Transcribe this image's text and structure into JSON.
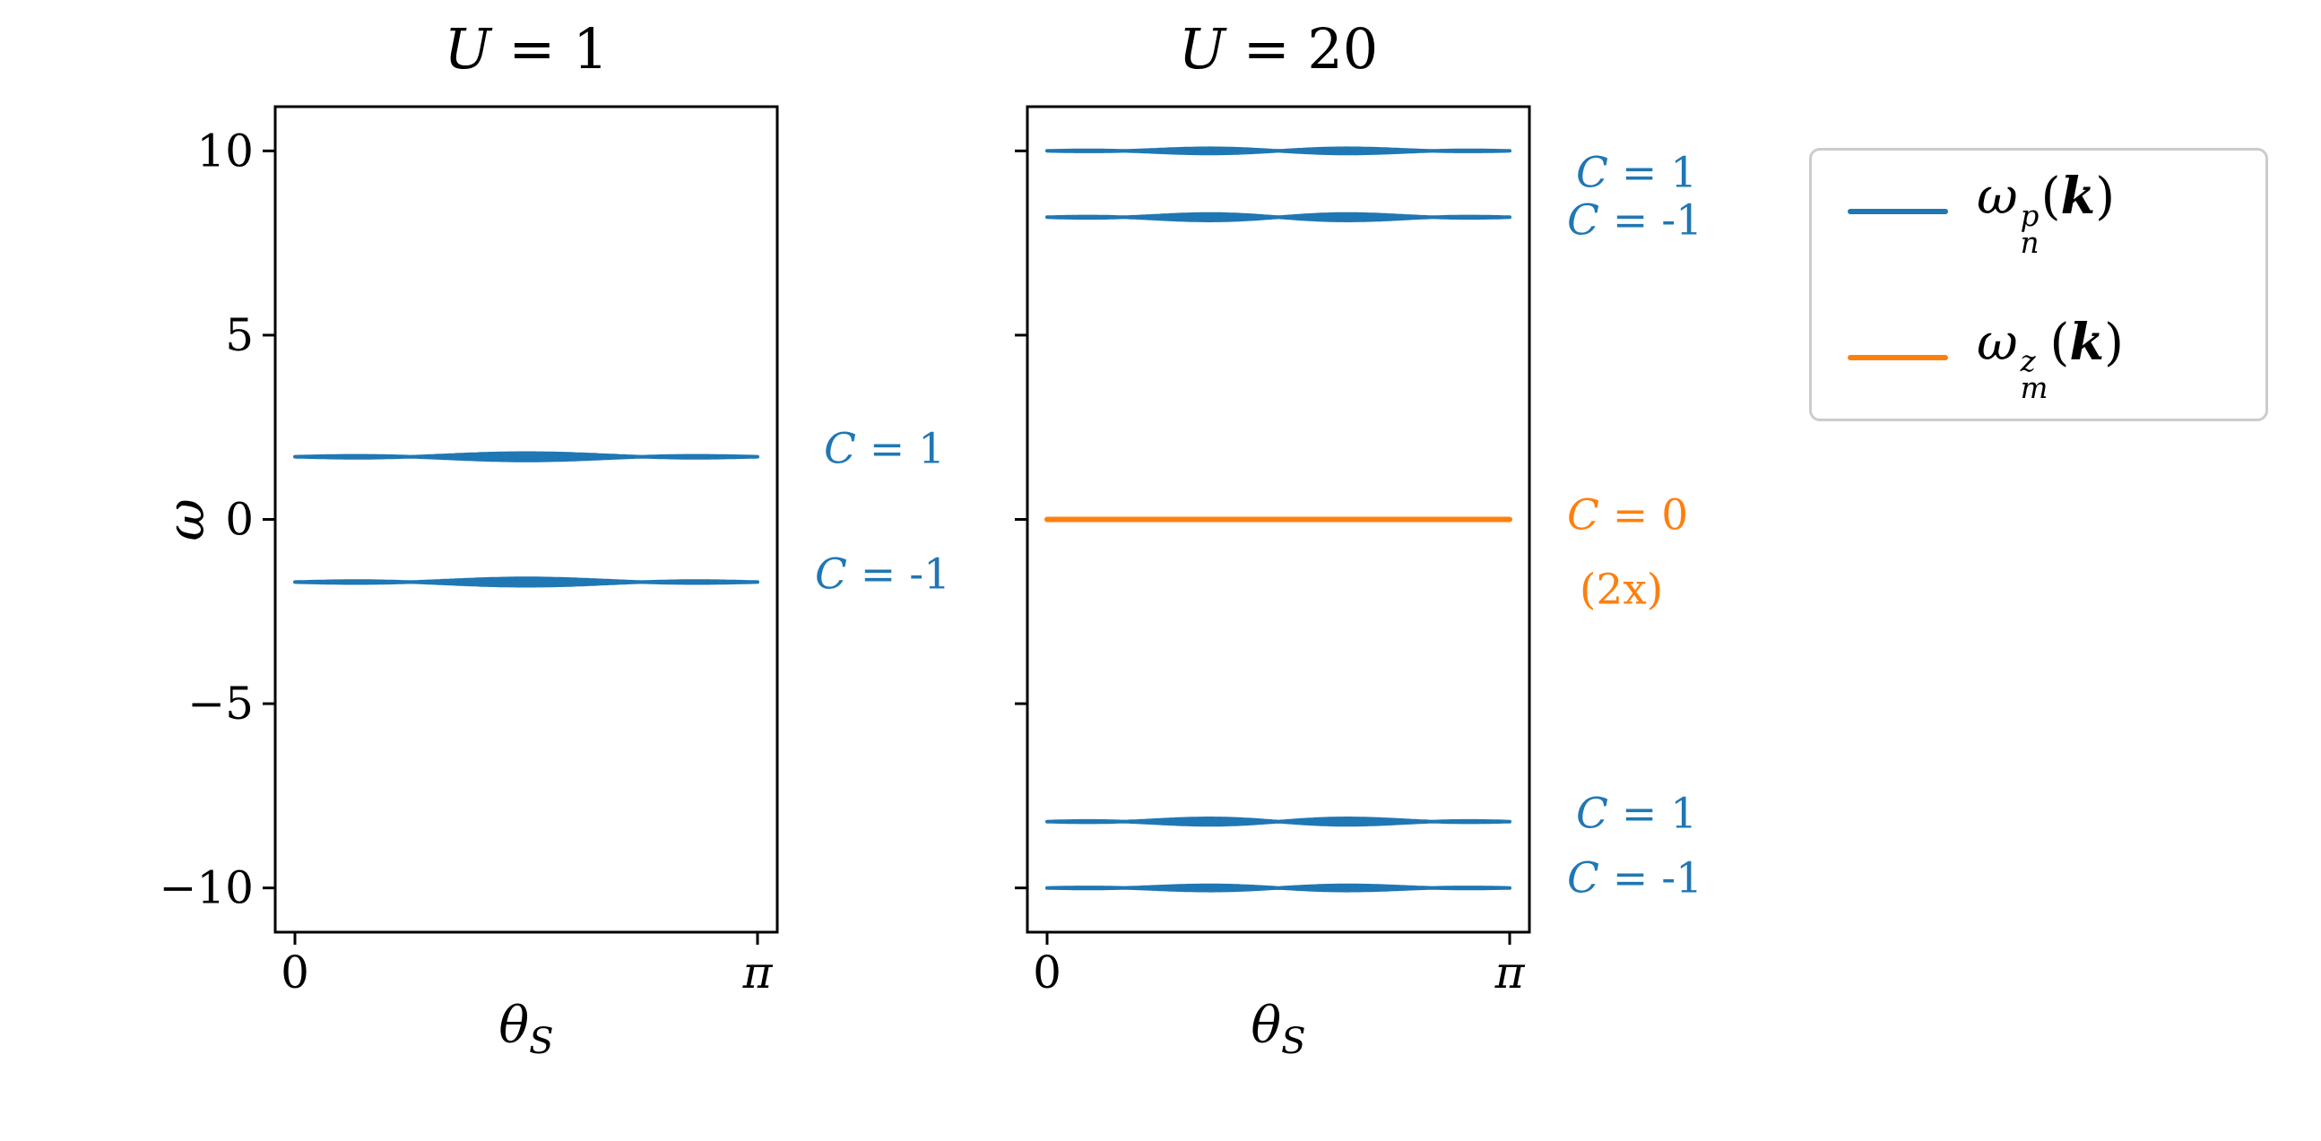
{
  "chart_data": {
    "type": "line",
    "description": "Flat magnon-like bands versus θ_S for interaction strengths U = 1 and U = 20, with Chern number annotations and a doubly degenerate zero mode at U = 20.",
    "colors": {
      "blue": "#1f77b4",
      "orange": "#ff7f0e",
      "axis": "#000000",
      "legend_border": "#cccccc",
      "text": "#000000"
    },
    "panels": [
      {
        "title": {
          "var": "U",
          "rest": " = 1",
          "text": "U = 1"
        },
        "xlabel": {
          "base": "θ",
          "sub": "S"
        },
        "ylabel": "ω",
        "xlim": [
          0,
          3.14159265
        ],
        "ylim": [
          -11.2,
          11.2
        ],
        "xticks": [
          {
            "label": "0",
            "value": 0,
            "italic": false
          },
          {
            "label": "π",
            "value": 3.14159265,
            "italic": true
          }
        ],
        "yticks": [
          {
            "label": "10",
            "value": 10
          },
          {
            "label": "5",
            "value": 5
          },
          {
            "label": "0",
            "value": 0
          },
          {
            "label": "−5",
            "value": -5
          },
          {
            "label": "−10",
            "value": -10
          }
        ],
        "bands": [
          {
            "series": "omega_n_p",
            "center": 1.7,
            "amp": 0.1,
            "freq": 2,
            "color": "blue"
          },
          {
            "series": "omega_n_p",
            "center": -1.7,
            "amp": 0.1,
            "freq": 2,
            "color": "blue"
          }
        ],
        "annotations": [
          {
            "text": "C = 1",
            "var": "C",
            "rest": " = 1",
            "y": 1.9,
            "color": "blue",
            "dx": 10
          },
          {
            "text": "C = -1",
            "var": "C",
            "rest": " = -1",
            "y": -1.5,
            "color": "blue",
            "dx": 0
          }
        ]
      },
      {
        "title": {
          "var": "U",
          "rest": " = 20",
          "text": "U = 20"
        },
        "xlabel": {
          "base": "θ",
          "sub": "S"
        },
        "ylabel": null,
        "xlim": [
          0,
          3.14159265
        ],
        "ylim": [
          -11.2,
          11.2
        ],
        "xticks": [
          {
            "label": "0",
            "value": 0,
            "italic": false
          },
          {
            "label": "π",
            "value": 3.14159265,
            "italic": true
          }
        ],
        "yticks": [],
        "bands": [
          {
            "series": "omega_n_p",
            "center": 10.0,
            "amp": 0.08,
            "freq": 3,
            "color": "blue"
          },
          {
            "series": "omega_n_p",
            "center": 8.2,
            "amp": 0.1,
            "freq": 3,
            "color": "blue"
          },
          {
            "series": "omega_m_z",
            "center": 0.0,
            "amp": 0.0,
            "freq": 0,
            "color": "orange"
          },
          {
            "series": "omega_n_p",
            "center": -8.2,
            "amp": 0.1,
            "freq": 3,
            "color": "blue"
          },
          {
            "series": "omega_n_p",
            "center": -10.0,
            "amp": 0.08,
            "freq": 3,
            "color": "blue"
          }
        ],
        "annotations": [
          {
            "text": "C = 1",
            "var": "C",
            "rest": " = 1",
            "y": 9.4,
            "color": "blue",
            "dx": 10
          },
          {
            "text": "C = -1",
            "var": "C",
            "rest": " = -1",
            "y": 8.1,
            "color": "blue",
            "dx": 0
          },
          {
            "text": "C = 0",
            "var": "C",
            "rest": " = 0",
            "y": 0.1,
            "color": "orange",
            "dx": 0
          },
          {
            "text": "(2x)",
            "var": "",
            "rest": "(2x)",
            "y": -1.9,
            "color": "orange",
            "dx": 14
          },
          {
            "text": "C = 1",
            "var": "C",
            "rest": " = 1",
            "y": -8.0,
            "color": "blue",
            "dx": 10
          },
          {
            "text": "C = -1",
            "var": "C",
            "rest": " = -1",
            "y": -9.75,
            "color": "blue",
            "dx": 0
          }
        ]
      }
    ],
    "legend": {
      "position": "outside upper right",
      "entries": [
        {
          "label_text": "ω_n^p(k)",
          "base": "ω",
          "sup": "p",
          "sub": "n",
          "arg_open": "(",
          "arg": "k",
          "arg_close": ")",
          "color": "blue"
        },
        {
          "label_text": "ω_m^z(k)",
          "base": "ω",
          "sup": "z",
          "sub": "m",
          "arg_open": "(",
          "arg": "k",
          "arg_close": ")",
          "color": "orange"
        }
      ]
    }
  }
}
